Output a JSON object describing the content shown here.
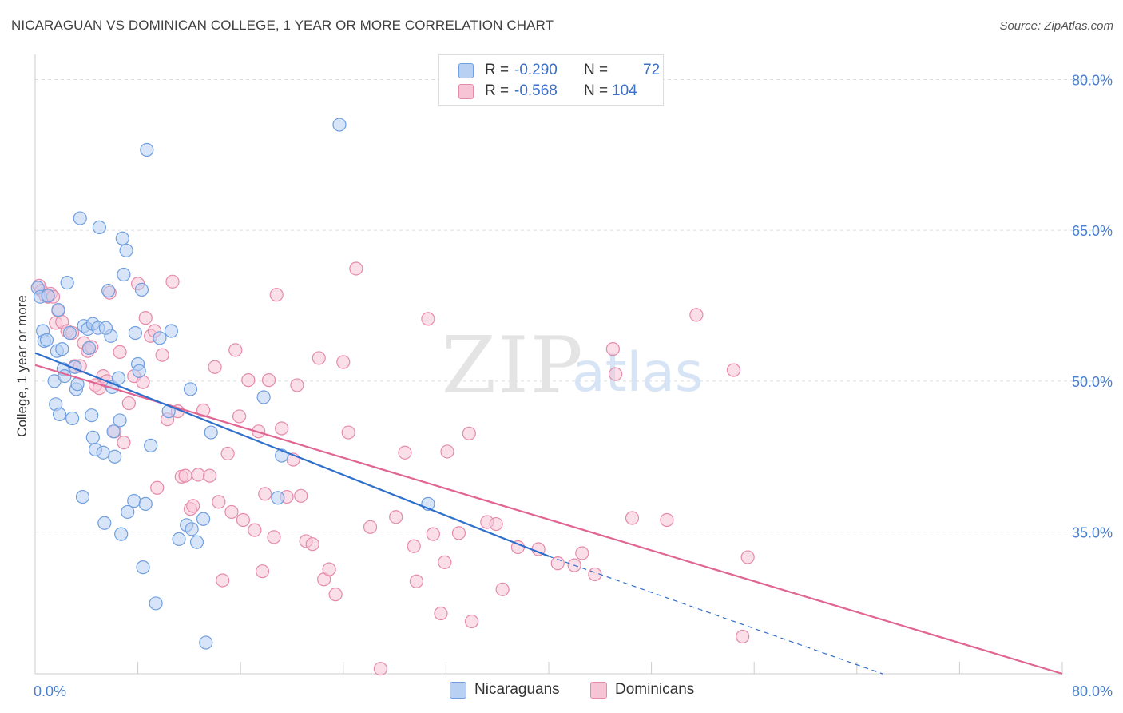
{
  "title": "NICARAGUAN VS DOMINICAN COLLEGE, 1 YEAR OR MORE CORRELATION CHART",
  "source": "Source: ZipAtlas.com",
  "watermark": {
    "zip": "ZIP",
    "atlas": "atlas"
  },
  "colors": {
    "blue_fill": "#b8d0f2",
    "blue_stroke": "#6f9fe0",
    "blue_line": "#2f6fcc",
    "pink_fill": "#f7c4d6",
    "pink_stroke": "#e58aab",
    "pink_line": "#e06592",
    "tick_text": "#4a7fd0",
    "grid": "#dddddd"
  },
  "legend": {
    "rows": [
      {
        "r_label": "R = ",
        "r_value": "-0.290",
        "n_label": "N = ",
        "n_value": "72"
      },
      {
        "r_label": "R = ",
        "r_value": "-0.568",
        "n_label": "N = ",
        "n_value": "104"
      }
    ]
  },
  "bottom_legend": [
    {
      "label": "Nicaraguans"
    },
    {
      "label": "Dominicans"
    }
  ],
  "chart_data": {
    "type": "scatter",
    "title": "NICARAGUAN VS DOMINICAN COLLEGE, 1 YEAR OR MORE CORRELATION CHART",
    "xlabel": "",
    "ylabel": "College, 1 year or more",
    "xlim": [
      0,
      80
    ],
    "ylim": [
      20.9,
      82.5
    ],
    "x_tick_labels": [
      "0.0%",
      "80.0%"
    ],
    "y_ticks": [
      35,
      50,
      65,
      80
    ],
    "y_tick_labels": [
      "35.0%",
      "50.0%",
      "65.0%",
      "80.0%"
    ],
    "grid": true,
    "series": [
      {
        "name": "Nicaraguans",
        "r": -0.29,
        "n": 72,
        "trend": {
          "x0": 0,
          "y0": 52.8,
          "x1": 40,
          "y1": 32.6,
          "dash_to_x": 66,
          "dash_to_y": 20.9
        },
        "points": [
          [
            0.2,
            59.3
          ],
          [
            0.4,
            58.4
          ],
          [
            0.6,
            55
          ],
          [
            0.7,
            54
          ],
          [
            0.9,
            54.1
          ],
          [
            1.0,
            58.5
          ],
          [
            1.5,
            50
          ],
          [
            1.6,
            47.7
          ],
          [
            1.7,
            53
          ],
          [
            1.8,
            57.1
          ],
          [
            1.9,
            46.7
          ],
          [
            2.1,
            53.2
          ],
          [
            2.2,
            51.2
          ],
          [
            2.3,
            50.5
          ],
          [
            2.5,
            59.8
          ],
          [
            2.7,
            54.8
          ],
          [
            2.9,
            46.3
          ],
          [
            3.1,
            51.4
          ],
          [
            3.2,
            49.2
          ],
          [
            3.5,
            66.2
          ],
          [
            3.7,
            38.5
          ],
          [
            3.8,
            55.5
          ],
          [
            4.1,
            55.2
          ],
          [
            4.2,
            53.3
          ],
          [
            4.4,
            46.6
          ],
          [
            4.5,
            55.7
          ],
          [
            4.5,
            44.4
          ],
          [
            4.7,
            43.2
          ],
          [
            4.9,
            55.3
          ],
          [
            5.0,
            65.3
          ],
          [
            5.3,
            42.9
          ],
          [
            5.4,
            35.9
          ],
          [
            5.7,
            59
          ],
          [
            5.9,
            54.5
          ],
          [
            6.0,
            49.4
          ],
          [
            6.2,
            42.5
          ],
          [
            6.5,
            50.3
          ],
          [
            6.6,
            46.1
          ],
          [
            6.7,
            34.8
          ],
          [
            6.8,
            64.2
          ],
          [
            6.9,
            60.6
          ],
          [
            7.1,
            63
          ],
          [
            7.2,
            37
          ],
          [
            7.7,
            38.1
          ],
          [
            7.8,
            54.8
          ],
          [
            8.0,
            51.7
          ],
          [
            8.1,
            51
          ],
          [
            8.3,
            59.1
          ],
          [
            8.6,
            37.8
          ],
          [
            8.7,
            73
          ],
          [
            9.0,
            43.6
          ],
          [
            9.4,
            27.9
          ],
          [
            9.7,
            54.3
          ],
          [
            10.4,
            47
          ],
          [
            10.6,
            55
          ],
          [
            11.2,
            34.3
          ],
          [
            11.8,
            35.7
          ],
          [
            12.1,
            49.2
          ],
          [
            12.2,
            35.3
          ],
          [
            12.6,
            34
          ],
          [
            13.1,
            36.3
          ],
          [
            13.3,
            24
          ],
          [
            13.7,
            44.9
          ],
          [
            17.8,
            48.4
          ],
          [
            18.9,
            38.4
          ],
          [
            19.2,
            42.6
          ],
          [
            23.7,
            75.5
          ],
          [
            30.6,
            37.8
          ],
          [
            8.4,
            31.5
          ],
          [
            5.5,
            55.3
          ],
          [
            3.3,
            49.7
          ],
          [
            6.1,
            45
          ]
        ]
      },
      {
        "name": "Dominicans",
        "r": -0.568,
        "n": 104,
        "trend": {
          "x0": 0,
          "y0": 51.6,
          "x1": 80,
          "y1": 20.9
        },
        "points": [
          [
            0.3,
            59.5
          ],
          [
            0.5,
            59
          ],
          [
            0.8,
            58.5
          ],
          [
            1.0,
            58.4
          ],
          [
            1.2,
            58.7
          ],
          [
            1.4,
            58.4
          ],
          [
            1.6,
            55.8
          ],
          [
            1.8,
            57
          ],
          [
            2.1,
            55.9
          ],
          [
            2.5,
            55
          ],
          [
            2.9,
            54.8
          ],
          [
            3.1,
            51.5
          ],
          [
            3.5,
            51.5
          ],
          [
            3.8,
            53.8
          ],
          [
            4.1,
            53
          ],
          [
            4.4,
            53.4
          ],
          [
            4.7,
            49.6
          ],
          [
            5.0,
            49.3
          ],
          [
            5.3,
            50.5
          ],
          [
            5.6,
            50
          ],
          [
            5.8,
            58.8
          ],
          [
            6.2,
            45
          ],
          [
            6.6,
            52.9
          ],
          [
            6.9,
            43.9
          ],
          [
            7.3,
            47.8
          ],
          [
            7.7,
            50.5
          ],
          [
            8.0,
            59.7
          ],
          [
            8.4,
            49.9
          ],
          [
            8.6,
            56.3
          ],
          [
            9.0,
            54.5
          ],
          [
            9.3,
            55
          ],
          [
            9.5,
            39.4
          ],
          [
            9.9,
            52.6
          ],
          [
            10.3,
            46.2
          ],
          [
            10.7,
            59.9
          ],
          [
            11.1,
            47
          ],
          [
            11.4,
            40.5
          ],
          [
            11.7,
            40.6
          ],
          [
            12.1,
            37.3
          ],
          [
            12.3,
            37.6
          ],
          [
            12.7,
            40.7
          ],
          [
            13.1,
            47.1
          ],
          [
            13.6,
            40.6
          ],
          [
            14.0,
            51.4
          ],
          [
            14.3,
            38
          ],
          [
            14.6,
            30.2
          ],
          [
            15.0,
            42.8
          ],
          [
            15.3,
            37
          ],
          [
            15.6,
            53.1
          ],
          [
            15.9,
            46.5
          ],
          [
            16.2,
            36.2
          ],
          [
            16.6,
            50.1
          ],
          [
            17.1,
            35.2
          ],
          [
            17.4,
            45
          ],
          [
            17.7,
            31.1
          ],
          [
            17.9,
            38.8
          ],
          [
            18.2,
            50.1
          ],
          [
            18.6,
            34.5
          ],
          [
            18.8,
            58.6
          ],
          [
            19.2,
            45.3
          ],
          [
            19.6,
            38.5
          ],
          [
            20.1,
            42.2
          ],
          [
            20.4,
            49.6
          ],
          [
            20.7,
            38.6
          ],
          [
            21.1,
            34.1
          ],
          [
            21.6,
            33.8
          ],
          [
            22.1,
            52.3
          ],
          [
            22.5,
            30.3
          ],
          [
            22.9,
            31.3
          ],
          [
            23.4,
            28.8
          ],
          [
            24.0,
            51.9
          ],
          [
            24.4,
            44.9
          ],
          [
            25.0,
            61.2
          ],
          [
            26.1,
            35.5
          ],
          [
            26.9,
            21.4
          ],
          [
            28.1,
            36.5
          ],
          [
            28.8,
            42.9
          ],
          [
            29.5,
            33.6
          ],
          [
            29.7,
            30.1
          ],
          [
            30.6,
            56.2
          ],
          [
            31.0,
            34.8
          ],
          [
            31.6,
            26.9
          ],
          [
            31.9,
            32
          ],
          [
            32.1,
            43
          ],
          [
            33.0,
            34.9
          ],
          [
            33.8,
            44.8
          ],
          [
            34.0,
            26.1
          ],
          [
            35.2,
            36
          ],
          [
            35.9,
            35.8
          ],
          [
            36.4,
            29.3
          ],
          [
            37.6,
            33.5
          ],
          [
            39.2,
            33.3
          ],
          [
            40.7,
            31.9
          ],
          [
            42.0,
            31.7
          ],
          [
            42.6,
            32.9
          ],
          [
            43.6,
            30.8
          ],
          [
            45.0,
            53.2
          ],
          [
            45.2,
            50.7
          ],
          [
            46.5,
            36.4
          ],
          [
            49.2,
            36.2
          ],
          [
            51.5,
            56.6
          ],
          [
            54.4,
            51.1
          ],
          [
            55.1,
            24.6
          ],
          [
            55.5,
            32.5
          ]
        ]
      }
    ]
  }
}
